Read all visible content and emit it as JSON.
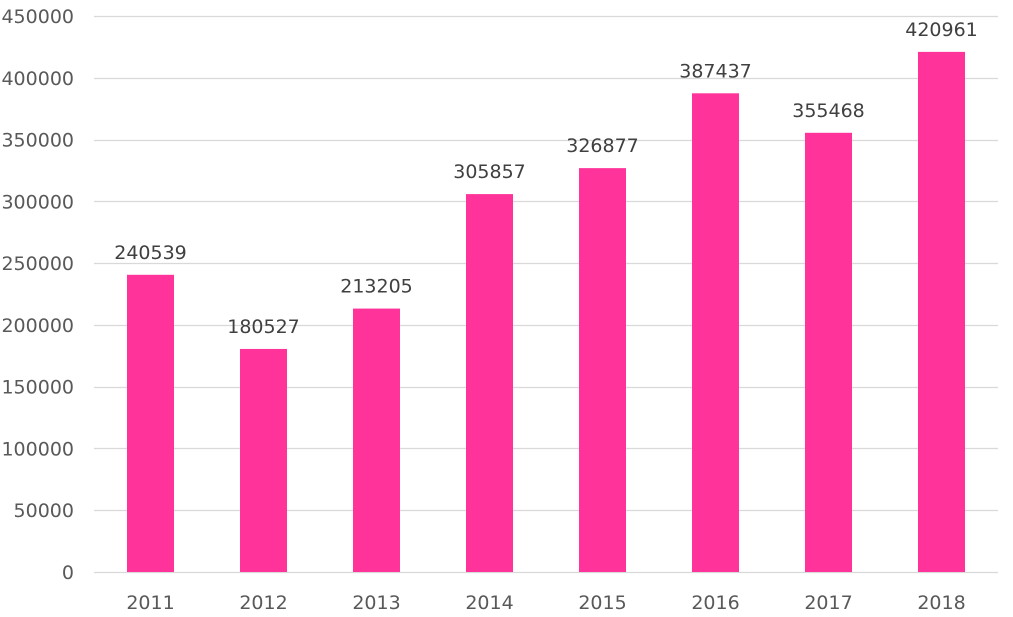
{
  "chart_data": {
    "type": "bar",
    "title": "",
    "xlabel": "",
    "ylabel": "",
    "categories": [
      "2011",
      "2012",
      "2013",
      "2014",
      "2015",
      "2016",
      "2017",
      "2018"
    ],
    "values": [
      240539,
      180527,
      213205,
      305857,
      326877,
      387437,
      355468,
      420961
    ],
    "data_labels": [
      "240539",
      "180527",
      "213205",
      "305857",
      "326877",
      "387437",
      "355468",
      "420961"
    ],
    "ylim": [
      0,
      450000
    ],
    "yticks": [
      0,
      50000,
      100000,
      150000,
      200000,
      250000,
      300000,
      350000,
      400000,
      450000
    ],
    "ytick_labels": [
      "0",
      "50000",
      "100000",
      "150000",
      "200000",
      "250000",
      "300000",
      "350000",
      "400000",
      "450000"
    ],
    "grid": true,
    "legend": "none",
    "bar_color": "#ff3399",
    "grid_color": "#d9d9d9"
  }
}
